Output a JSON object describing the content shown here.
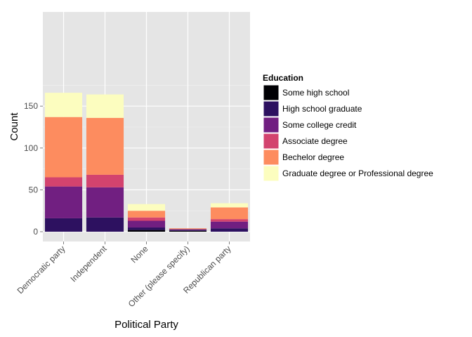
{
  "chart_data": {
    "type": "bar",
    "stacked": true,
    "title": "",
    "xlabel": "Political Party",
    "ylabel": "Count",
    "ylim": [
      0,
      170
    ],
    "yticks": [
      0,
      50,
      100,
      150
    ],
    "grid": true,
    "legend_position": "right",
    "legend_title": "Education",
    "categories": [
      "Democratic party",
      "Independent",
      "None",
      "Other (please specify)",
      "Republican party"
    ],
    "series": [
      {
        "name": "Some high school",
        "color": "#000004",
        "values": [
          0,
          0,
          2,
          1,
          0
        ]
      },
      {
        "name": "High school graduate",
        "color": "#2d1160",
        "values": [
          16,
          17,
          3,
          1,
          4
        ]
      },
      {
        "name": "Some college credit",
        "color": "#711f81",
        "values": [
          38,
          36,
          8,
          1,
          8
        ]
      },
      {
        "name": "Associate degree",
        "color": "#d3436e",
        "values": [
          11,
          15,
          4,
          0,
          3
        ]
      },
      {
        "name": "Bechelor degree",
        "color": "#fd8c5f",
        "values": [
          72,
          68,
          8,
          1,
          14
        ]
      },
      {
        "name": "Graduate degree or Professional degree",
        "color": "#fcfdbf",
        "values": [
          29,
          28,
          8,
          0,
          5
        ]
      }
    ]
  }
}
